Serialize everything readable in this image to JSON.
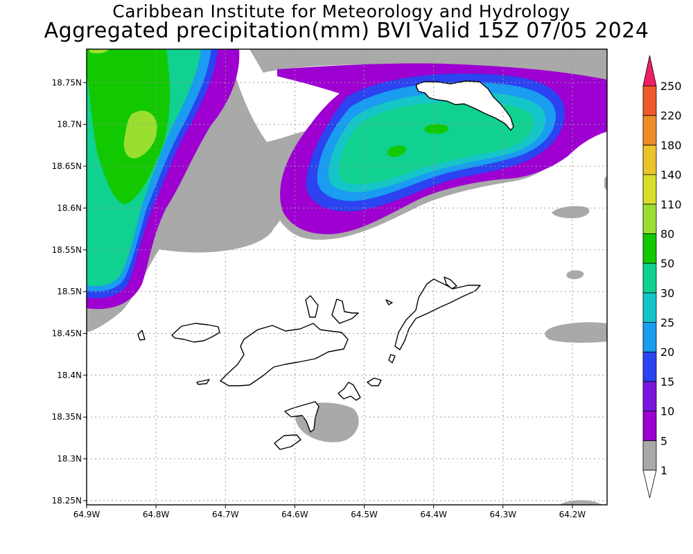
{
  "title": {
    "line1": "Caribbean Institute for Meteorology and Hydrology",
    "line2": "Aggregated precipitation(mm) BVI Valid 15Z 07/05 2024"
  },
  "map": {
    "region": "BVI",
    "lon_range": [
      -64.9,
      -64.15
    ],
    "lat_range": [
      18.245,
      18.79
    ],
    "lat_ticks": [
      "18.75N",
      "18.7N",
      "18.65N",
      "18.6N",
      "18.55N",
      "18.5N",
      "18.45N",
      "18.4N",
      "18.35N",
      "18.3N",
      "18.25N"
    ],
    "lon_ticks": [
      "64.9W",
      "64.8W",
      "64.7W",
      "64.6W",
      "64.5W",
      "64.4W",
      "64.3W",
      "64.2W"
    ],
    "grid": true
  },
  "colorbar": {
    "levels": [
      "1",
      "5",
      "10",
      "15",
      "20",
      "25",
      "30",
      "50",
      "80",
      "110",
      "140",
      "180",
      "220",
      "250"
    ],
    "colors": [
      "#a9a9a9",
      "#9d00d0",
      "#7a17e0",
      "#2b43f0",
      "#1a9cf0",
      "#16c5c8",
      "#10d190",
      "#12c800",
      "#9adf2f",
      "#d8de2c",
      "#ebc42a",
      "#ee8c28",
      "#f05a2a",
      "#ee1f63"
    ],
    "below_color": "#ffffff"
  },
  "colors": {
    "frame": "#000000",
    "land_fill": "#ffffff",
    "land_outline": "#000000"
  }
}
